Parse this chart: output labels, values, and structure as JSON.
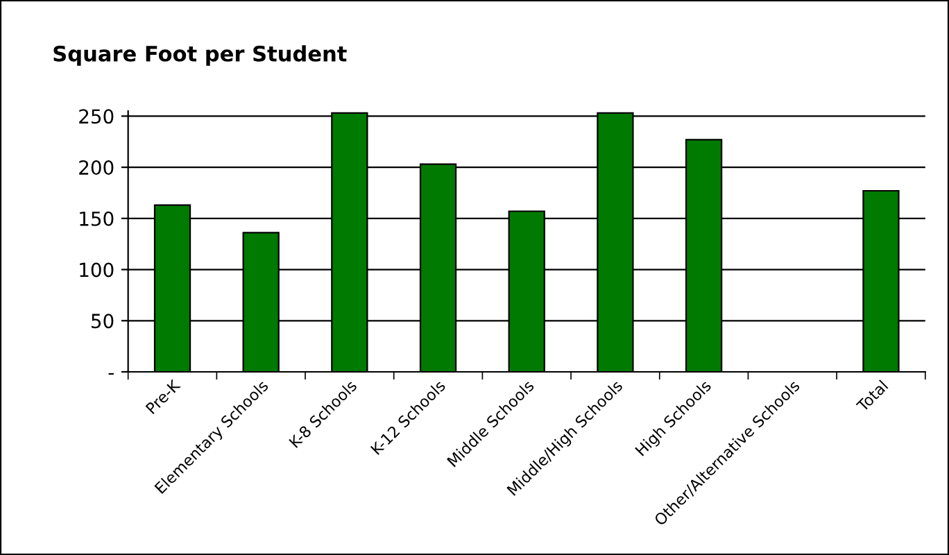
{
  "chart_data": {
    "type": "bar",
    "title": "Square Foot per Student",
    "categories": [
      "Pre-K",
      "Elementary Schools",
      "K-8 Schools",
      "K-12 Schools",
      "Middle Schools",
      "Middle/High Schools",
      "High Schools",
      "Other/Alternative Schools",
      "Total"
    ],
    "values": [
      163,
      136,
      253,
      203,
      157,
      253,
      227,
      null,
      177
    ],
    "color": "#007a00",
    "ylim": [
      0,
      255
    ],
    "yticks": [
      {
        "value": 0,
        "label": "-"
      },
      50,
      100,
      150,
      200,
      250
    ],
    "grid": "y"
  }
}
